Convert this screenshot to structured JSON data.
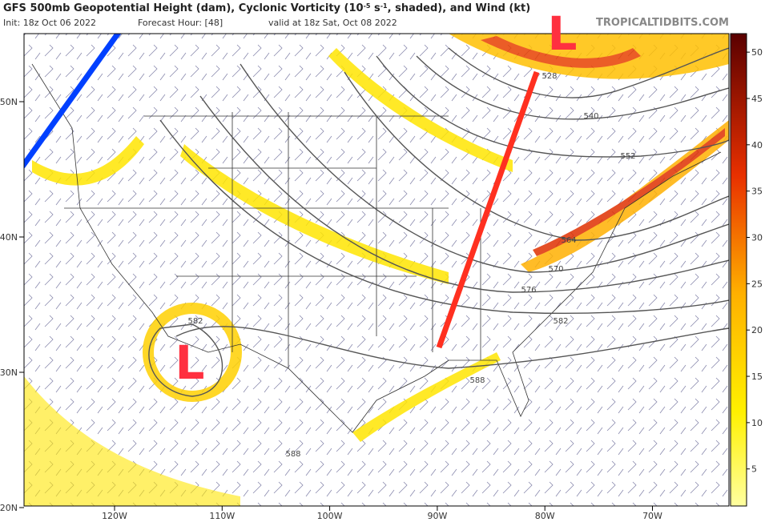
{
  "header": {
    "title_parts": [
      "GFS 500mb Geopotential Height (dam), Cyclonic Vorticity (10",
      "-5",
      " s",
      "-1",
      ", shaded), and Wind (kt)"
    ],
    "init": "Init: 18z Oct 06 2022",
    "forecast_hour": "Forecast Hour: [48]",
    "valid": "valid at 18z Sat, Oct 08 2022",
    "brand": "TROPICALTIDBITS.COM"
  },
  "map": {
    "lat_ticks": [
      {
        "value": 50,
        "label": "50N"
      },
      {
        "value": 40,
        "label": "40N"
      },
      {
        "value": 30,
        "label": "30N"
      },
      {
        "value": 20,
        "label": "20N"
      }
    ],
    "lon_ticks": [
      {
        "value": -120,
        "label": "120W"
      },
      {
        "value": -110,
        "label": "110W"
      },
      {
        "value": -100,
        "label": "100W"
      },
      {
        "value": -90,
        "label": "90W"
      },
      {
        "value": -80,
        "label": "80W"
      },
      {
        "value": -70,
        "label": "70W"
      }
    ],
    "contour_labels": [
      "528",
      "540",
      "552",
      "564",
      "570",
      "576",
      "582",
      "588",
      "582",
      "588"
    ],
    "annotations": [
      "L",
      "L"
    ]
  },
  "colorbar": {
    "lim": [
      1,
      52
    ],
    "ticks": [
      5,
      10,
      15,
      20,
      25,
      30,
      35,
      40,
      45,
      50
    ]
  }
}
